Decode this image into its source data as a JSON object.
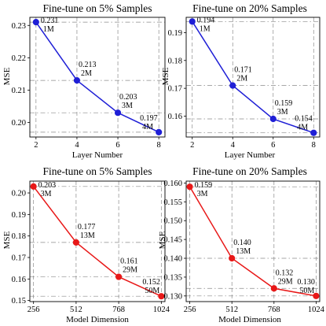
{
  "chart_data": [
    {
      "type": "line",
      "title": "Fine-tune on 5% Samples",
      "xlabel": "Layer Number",
      "ylabel": "MSE",
      "color": "#1f1fd6",
      "x": [
        2,
        4,
        6,
        8
      ],
      "x_ticks": [
        "2",
        "4",
        "6",
        "8"
      ],
      "xlim": [
        1.7,
        8.3
      ],
      "ylim": [
        0.1955,
        0.2325
      ],
      "y_ticks": [
        0.2,
        0.21,
        0.22,
        0.23
      ],
      "y_tick_labels": [
        "0.20",
        "0.21",
        "0.22",
        "0.23"
      ],
      "values": [
        0.231,
        0.213,
        0.203,
        0.197
      ],
      "value_labels": [
        "0.231",
        "0.213",
        "0.203",
        "0.197"
      ],
      "param_labels": [
        "1M",
        "2M",
        "3M",
        "4M"
      ],
      "grid": true
    },
    {
      "type": "line",
      "title": "Fine-tune on 20% Samples",
      "xlabel": "Layer Number",
      "ylabel": "MSE",
      "color": "#1f1fd6",
      "x": [
        2,
        4,
        6,
        8
      ],
      "x_ticks": [
        "2",
        "4",
        "6",
        "8"
      ],
      "xlim": [
        1.7,
        8.3
      ],
      "ylim": [
        0.1525,
        0.1955
      ],
      "y_ticks": [
        0.16,
        0.17,
        0.18,
        0.19
      ],
      "y_tick_labels": [
        "0.16",
        "0.17",
        "0.18",
        "0.19"
      ],
      "values": [
        0.194,
        0.171,
        0.159,
        0.154
      ],
      "value_labels": [
        "0.194",
        "0.171",
        "0.159",
        "0.154"
      ],
      "param_labels": [
        "1M",
        "2M",
        "3M",
        "4M"
      ],
      "grid": true
    },
    {
      "type": "line",
      "title": "Fine-tune on 5% Samples",
      "xlabel": "Model Dimension",
      "ylabel": "MSE",
      "color": "#e81818",
      "x": [
        256,
        512,
        768,
        1024
      ],
      "x_ticks": [
        "256",
        "512",
        "768",
        "1024"
      ],
      "xlim": [
        234,
        1046
      ],
      "ylim": [
        0.1495,
        0.2055
      ],
      "y_ticks": [
        0.15,
        0.16,
        0.17,
        0.18,
        0.19,
        0.2
      ],
      "y_tick_labels": [
        "0.15",
        "0.16",
        "0.17",
        "0.18",
        "0.19",
        "0.20"
      ],
      "values": [
        0.203,
        0.177,
        0.161,
        0.152
      ],
      "value_labels": [
        "0.203",
        "0.177",
        "0.161",
        "0.152"
      ],
      "param_labels": [
        "3M",
        "13M",
        "29M",
        "50M"
      ],
      "grid": true
    },
    {
      "type": "line",
      "title": "Fine-tune on 20% Samples",
      "xlabel": "Model Dimension",
      "ylabel": "MSE",
      "color": "#e81818",
      "x": [
        256,
        512,
        768,
        1024
      ],
      "x_ticks": [
        "256",
        "512",
        "768",
        "1024"
      ],
      "xlim": [
        234,
        1046
      ],
      "ylim": [
        0.1285,
        0.1605
      ],
      "y_ticks": [
        0.13,
        0.135,
        0.14,
        0.145,
        0.15,
        0.155,
        0.16
      ],
      "y_tick_labels": [
        "0.130",
        "0.135",
        "0.140",
        "0.145",
        "0.150",
        "0.155",
        "0.160"
      ],
      "values": [
        0.159,
        0.14,
        0.132,
        0.13
      ],
      "value_labels": [
        "0.159",
        "0.140",
        "0.132",
        "0.130"
      ],
      "param_labels": [
        "3M",
        "13M",
        "29M",
        "50M"
      ],
      "grid": true
    }
  ]
}
